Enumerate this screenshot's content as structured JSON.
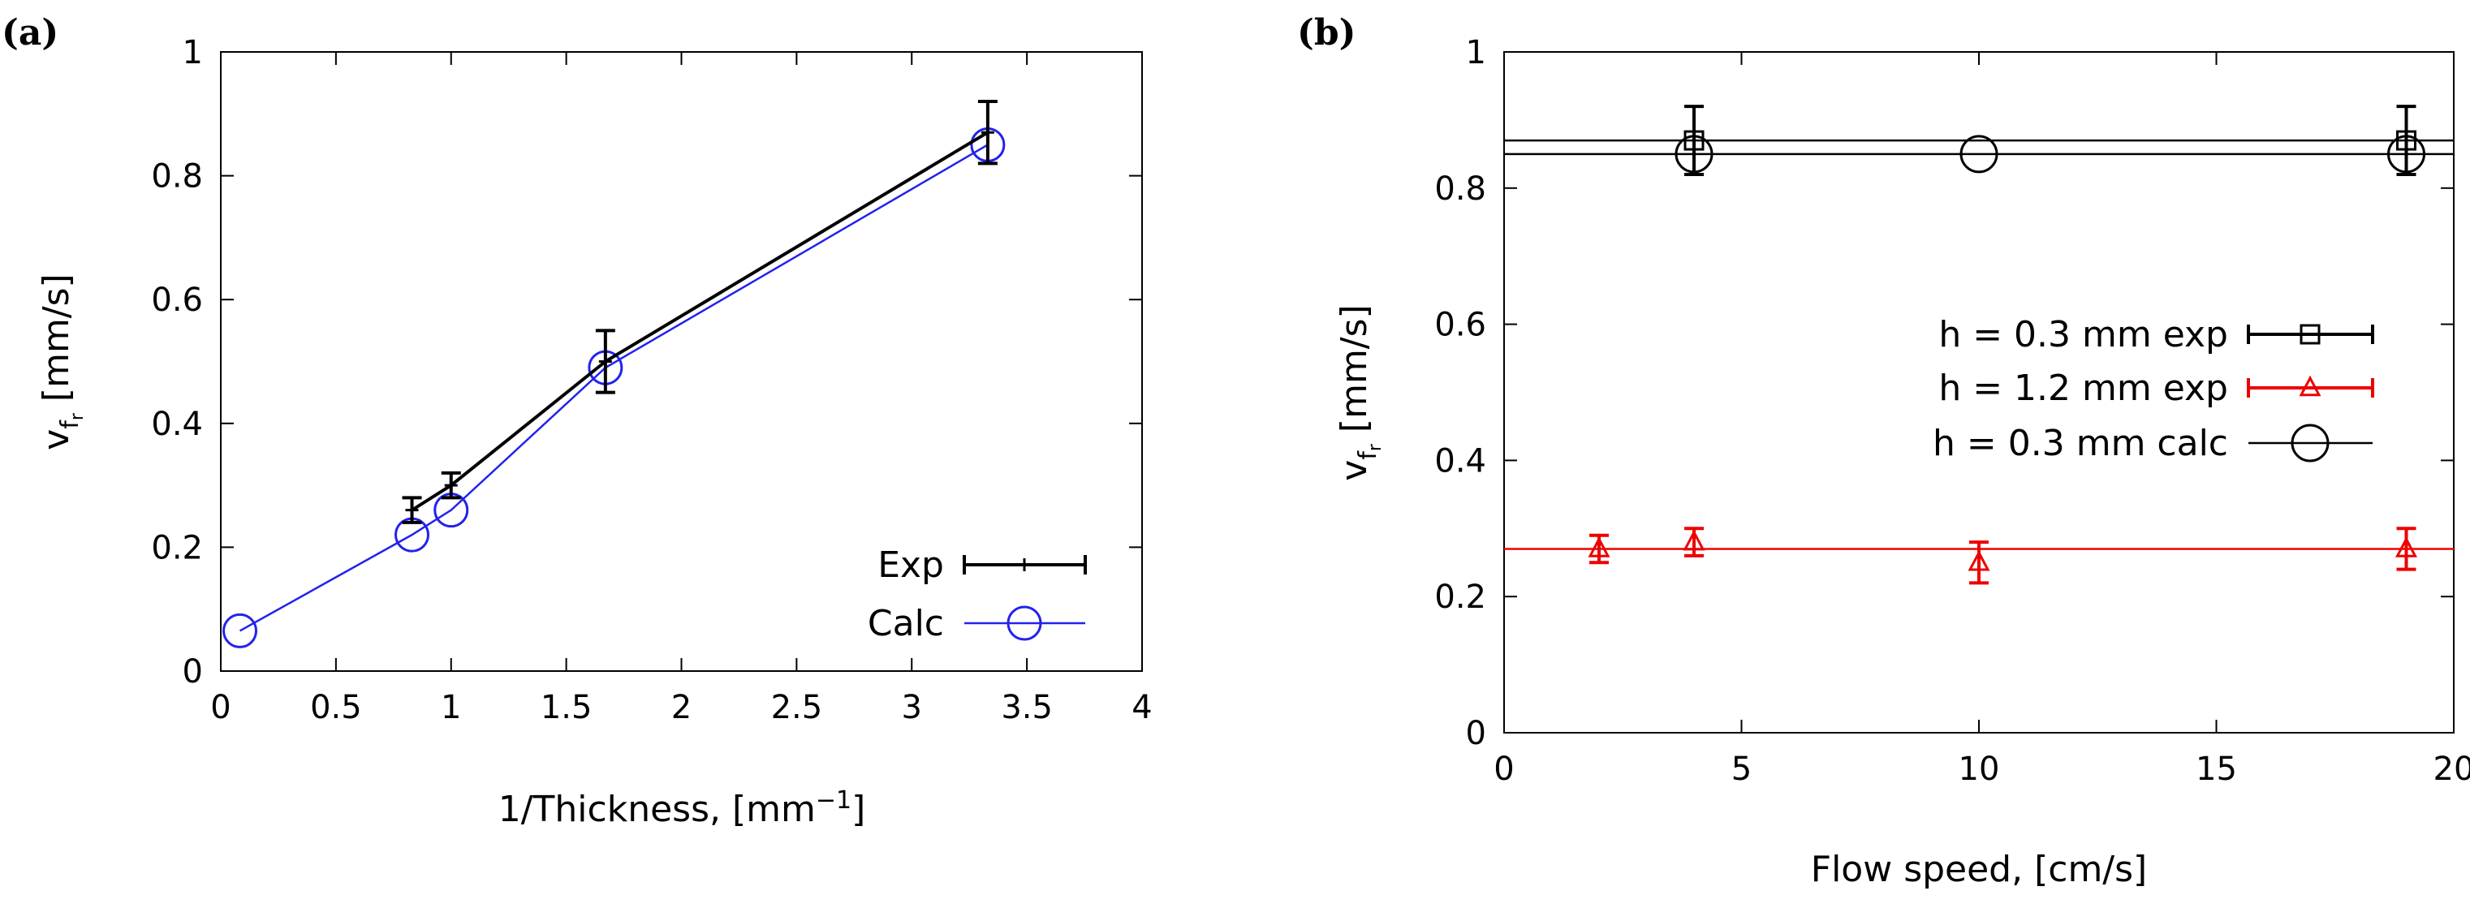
{
  "chart_data": [
    {
      "panel_label": "(a)",
      "type": "line",
      "xlabel_main": "1/Thickness, [mm",
      "xlabel_sup": "−1",
      "xlabel_end": "]",
      "ylabel_main": "v",
      "ylabel_sub": "f",
      "ylabel_subsub": "r",
      "ylabel_end": " [mm/s]",
      "xlim": [
        0,
        4
      ],
      "ylim": [
        0,
        1
      ],
      "xticks": [
        "0",
        "0.5",
        "1",
        "1.5",
        "2",
        "2.5",
        "3",
        "3.5",
        "4"
      ],
      "yticks": [
        "0",
        "0.2",
        "0.4",
        "0.6",
        "0.8",
        "1"
      ],
      "legend_position": "bottom-right",
      "grid": false,
      "series": [
        {
          "name": "Exp",
          "color": "#000000",
          "style": "line-errorbars",
          "x": [
            0.83,
            1.0,
            1.67,
            3.33
          ],
          "y": [
            0.26,
            0.3,
            0.5,
            0.87
          ],
          "err": [
            0.02,
            0.02,
            0.05,
            0.05
          ]
        },
        {
          "name": "Calc",
          "color": "#2222ee",
          "style": "line-circles",
          "x": [
            0.083,
            0.83,
            1.0,
            1.67,
            3.33
          ],
          "y": [
            0.065,
            0.22,
            0.26,
            0.49,
            0.85
          ]
        }
      ]
    },
    {
      "panel_label": "(b)",
      "type": "scatter",
      "xlabel": "Flow speed, [cm/s]",
      "ylabel_main": "v",
      "ylabel_sub": "f",
      "ylabel_subsub": "r",
      "ylabel_end": " [mm/s]",
      "xlim": [
        0,
        20
      ],
      "ylim": [
        0,
        1
      ],
      "xticks": [
        "0",
        "5",
        "10",
        "15",
        "20"
      ],
      "yticks": [
        "0",
        "0.2",
        "0.4",
        "0.6",
        "0.8",
        "1"
      ],
      "legend_position": "right",
      "grid": false,
      "series": [
        {
          "name": "h = 0.3 mm exp",
          "color": "#000000",
          "marker": "square",
          "x": [
            4,
            19
          ],
          "y": [
            0.87,
            0.87
          ],
          "err": [
            0.05,
            0.05
          ],
          "hline": 0.87
        },
        {
          "name": "h = 1.2 mm exp",
          "color": "#ee0000",
          "marker": "triangle",
          "x": [
            2,
            4,
            10,
            19
          ],
          "y": [
            0.27,
            0.28,
            0.25,
            0.27
          ],
          "err": [
            0.02,
            0.02,
            0.03,
            0.03
          ],
          "hline": 0.27
        },
        {
          "name": "h = 0.3 mm calc",
          "color": "#000000",
          "marker": "circle",
          "x": [
            4,
            10,
            19
          ],
          "y": [
            0.85,
            0.85,
            0.85
          ],
          "hline": 0.85
        }
      ]
    }
  ]
}
